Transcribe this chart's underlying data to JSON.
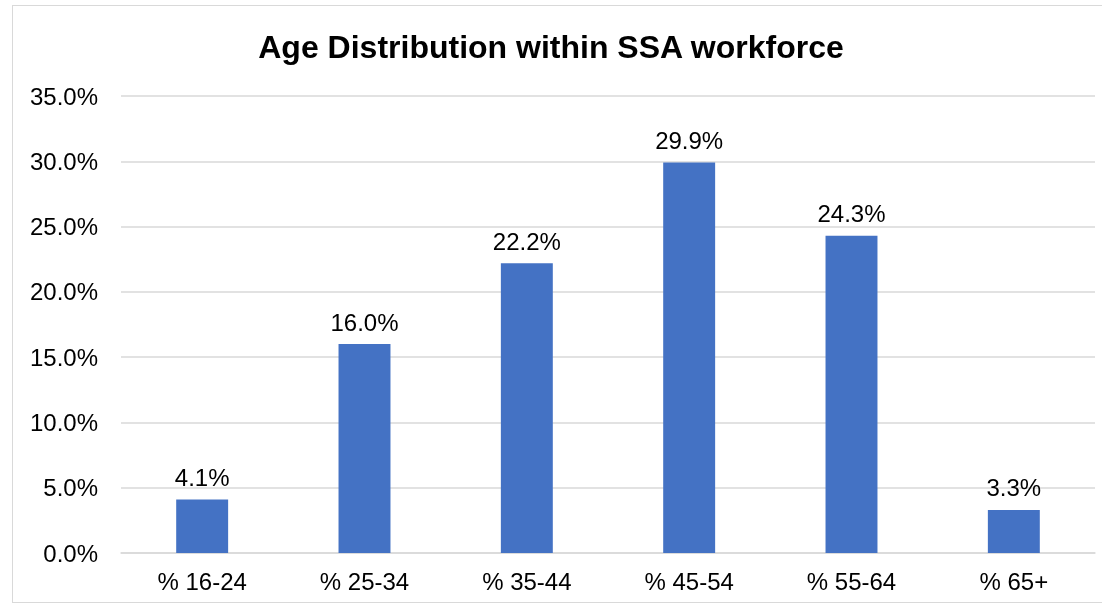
{
  "chart_data": {
    "type": "bar",
    "title": "Age Distribution within SSA workforce",
    "categories": [
      "% 16-24",
      "% 25-34",
      "% 35-44",
      "% 45-54",
      "% 55-64",
      "% 65+"
    ],
    "values": [
      4.1,
      16.0,
      22.2,
      29.9,
      24.3,
      3.3
    ],
    "value_labels": [
      "4.1%",
      "16.0%",
      "22.2%",
      "29.9%",
      "24.3%",
      "3.3%"
    ],
    "color": "#4472c4",
    "ylim": [
      0,
      35
    ],
    "yticks": [
      {
        "value": 0,
        "label": "0.0%"
      },
      {
        "value": 5,
        "label": "5.0%"
      },
      {
        "value": 10,
        "label": "10.0%"
      },
      {
        "value": 15,
        "label": "15.0%"
      },
      {
        "value": 20,
        "label": "20.0%"
      },
      {
        "value": 25,
        "label": "25.0%"
      },
      {
        "value": 30,
        "label": "30.0%"
      },
      {
        "value": 35,
        "label": "35.0%"
      }
    ],
    "grid": "y"
  }
}
